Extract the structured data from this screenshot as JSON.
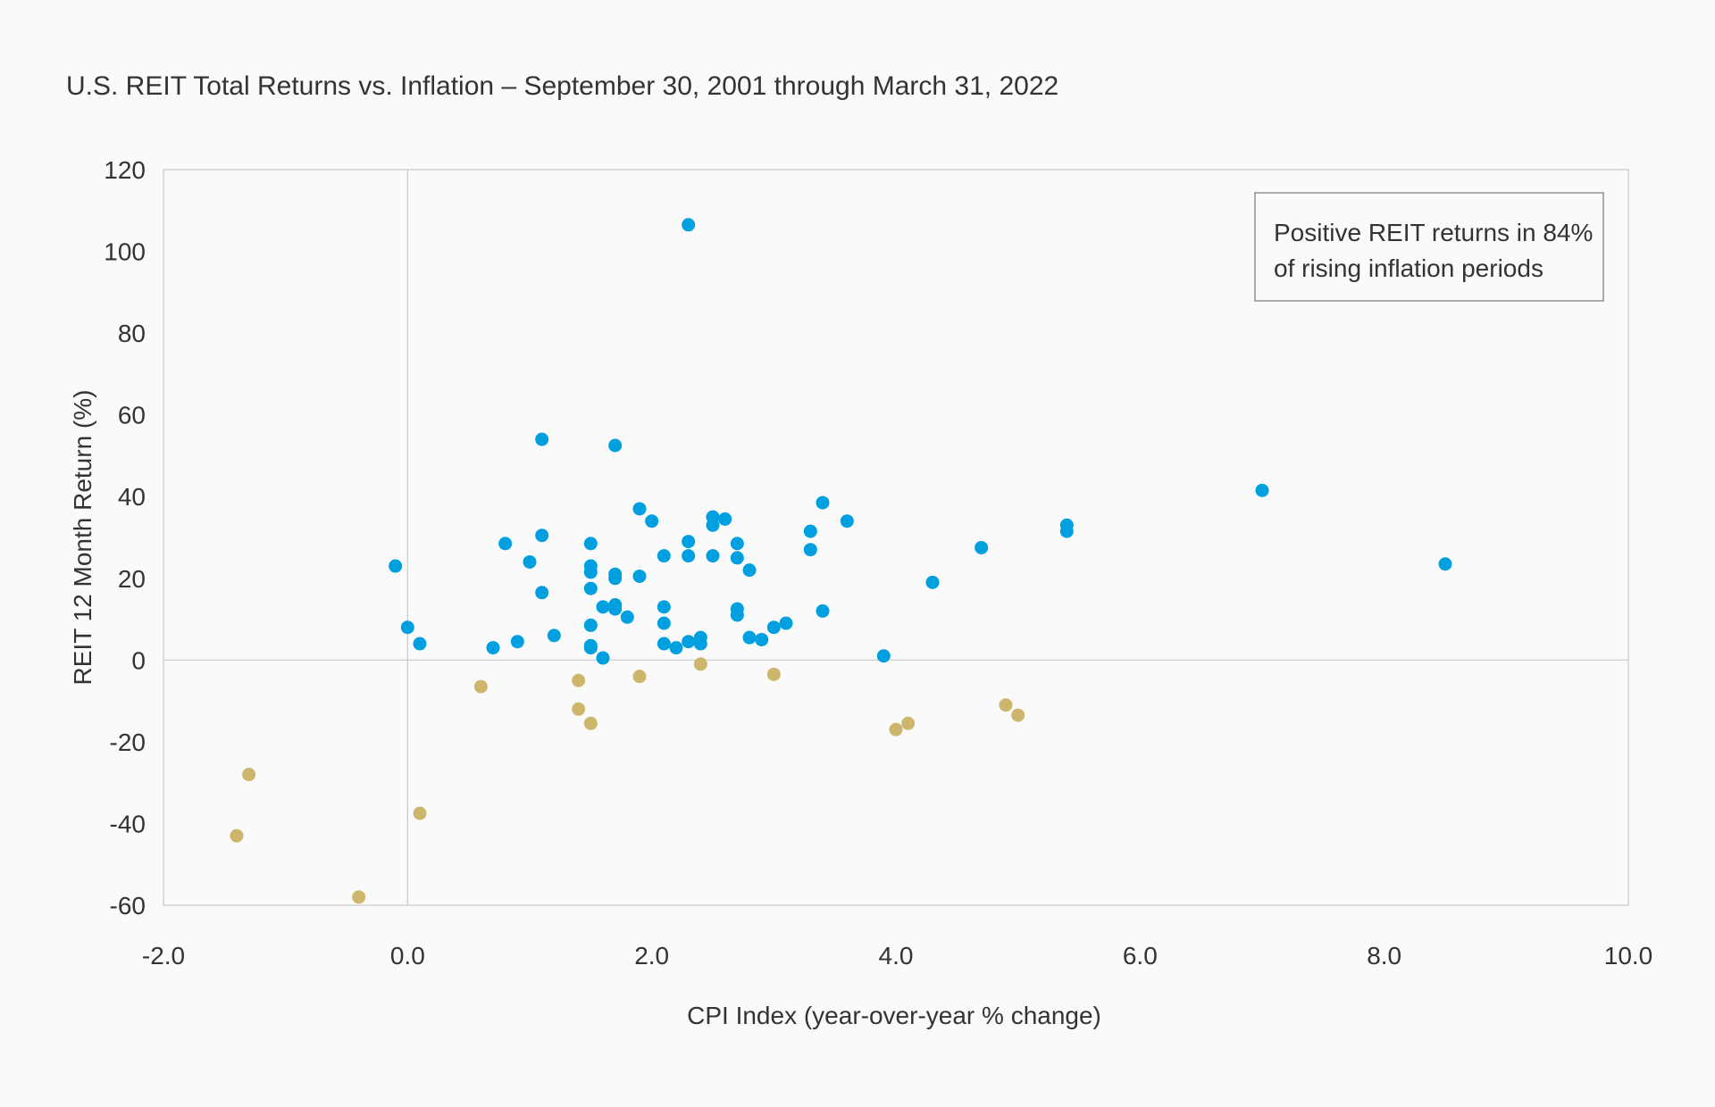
{
  "chart_data": {
    "type": "scatter",
    "title": "U.S. REIT Total Returns vs. Inflation – September 30, 2001 through March 31, 2022",
    "xlabel": "CPI Index (year-over-year % change)",
    "ylabel": "REIT 12 Month Return (%)",
    "xlim": [
      -2.0,
      10.0
    ],
    "ylim": [
      -60,
      120
    ],
    "x_ticks": [
      "-2.0",
      "0.0",
      "2.0",
      "4.0",
      "6.0",
      "8.0",
      "10.0"
    ],
    "y_ticks": [
      "120",
      "100",
      "80",
      "60",
      "40",
      "20",
      "0",
      "-20",
      "-40",
      "-60"
    ],
    "grid": false,
    "legend": "none",
    "annotation": {
      "line1": "Positive REIT returns in 84%",
      "line2": "of rising inflation periods",
      "placement": "top-right"
    },
    "colors": {
      "positive": "#009fdf",
      "negative": "#cdb66c",
      "axis": "#c8c8c8"
    },
    "series": [
      {
        "color": "#009fdf",
        "points": [
          [
            2.3,
            106.5
          ],
          [
            1.1,
            54.0
          ],
          [
            1.7,
            52.5
          ],
          [
            7.0,
            41.5
          ],
          [
            3.4,
            38.5
          ],
          [
            1.9,
            37.0
          ],
          [
            2.5,
            35.0
          ],
          [
            2.6,
            34.5
          ],
          [
            3.6,
            34.0
          ],
          [
            2.0,
            34.0
          ],
          [
            5.4,
            33.0
          ],
          [
            2.5,
            33.0
          ],
          [
            3.3,
            31.5
          ],
          [
            5.4,
            31.5
          ],
          [
            1.1,
            30.5
          ],
          [
            2.3,
            29.0
          ],
          [
            0.8,
            28.5
          ],
          [
            1.5,
            28.5
          ],
          [
            2.7,
            28.5
          ],
          [
            4.7,
            27.5
          ],
          [
            3.3,
            27.0
          ],
          [
            2.1,
            25.5
          ],
          [
            2.3,
            25.5
          ],
          [
            2.5,
            25.5
          ],
          [
            2.7,
            25.0
          ],
          [
            1.0,
            24.0
          ],
          [
            8.5,
            23.5
          ],
          [
            -0.1,
            23.0
          ],
          [
            1.5,
            23.0
          ],
          [
            2.8,
            22.0
          ],
          [
            1.5,
            21.5
          ],
          [
            1.7,
            21.0
          ],
          [
            1.9,
            20.5
          ],
          [
            1.7,
            20.0
          ],
          [
            4.3,
            19.0
          ],
          [
            1.5,
            17.5
          ],
          [
            1.1,
            16.5
          ],
          [
            1.6,
            13.0
          ],
          [
            1.7,
            13.5
          ],
          [
            2.1,
            13.0
          ],
          [
            2.7,
            12.5
          ],
          [
            1.7,
            12.5
          ],
          [
            3.4,
            12.0
          ],
          [
            2.7,
            11.0
          ],
          [
            1.8,
            10.5
          ],
          [
            2.1,
            9.0
          ],
          [
            1.5,
            8.5
          ],
          [
            3.1,
            9.0
          ],
          [
            0.0,
            8.0
          ],
          [
            3.0,
            8.0
          ],
          [
            1.2,
            6.0
          ],
          [
            2.8,
            5.5
          ],
          [
            2.4,
            5.5
          ],
          [
            2.9,
            5.0
          ],
          [
            0.9,
            4.5
          ],
          [
            2.3,
            4.5
          ],
          [
            0.1,
            4.0
          ],
          [
            2.1,
            4.0
          ],
          [
            2.4,
            4.0
          ],
          [
            1.5,
            3.5
          ],
          [
            1.5,
            3.0
          ],
          [
            0.7,
            3.0
          ],
          [
            2.2,
            3.0
          ],
          [
            3.9,
            1.0
          ],
          [
            1.6,
            0.5
          ]
        ]
      },
      {
        "color": "#cdb66c",
        "points": [
          [
            2.4,
            -1.0
          ],
          [
            1.9,
            -4.0
          ],
          [
            3.0,
            -3.5
          ],
          [
            1.4,
            -5.0
          ],
          [
            0.6,
            -6.5
          ],
          [
            4.9,
            -11.0
          ],
          [
            1.4,
            -12.0
          ],
          [
            5.0,
            -13.5
          ],
          [
            1.5,
            -15.5
          ],
          [
            4.1,
            -15.5
          ],
          [
            4.0,
            -17.0
          ],
          [
            -1.3,
            -28.0
          ],
          [
            0.1,
            -37.5
          ],
          [
            -1.4,
            -43.0
          ],
          [
            -0.4,
            -58.0
          ]
        ]
      }
    ]
  }
}
